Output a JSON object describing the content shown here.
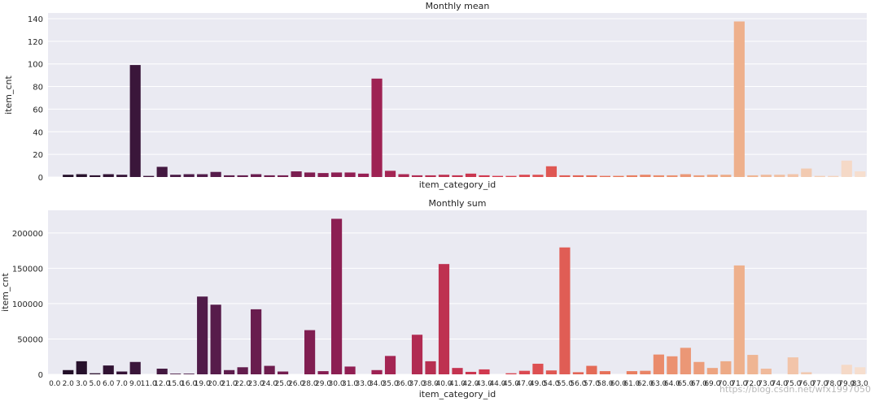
{
  "watermark": "https://blog.csdn.net/wfx1997050",
  "chart_data": [
    {
      "type": "bar",
      "title": "Monthly mean",
      "xlabel": "item_category_id",
      "ylabel": "item_cnt",
      "ylim": [
        0,
        145
      ],
      "yticks": [
        0,
        20,
        40,
        60,
        80,
        100,
        120,
        140
      ],
      "show_x_tick_labels": false,
      "categories": [
        "0.0",
        "2.0",
        "3.0",
        "5.0",
        "6.0",
        "7.0",
        "9.0",
        "11.0",
        "12.0",
        "15.0",
        "16.0",
        "19.0",
        "20.0",
        "21.0",
        "22.0",
        "23.0",
        "24.0",
        "25.0",
        "26.0",
        "28.0",
        "29.0",
        "30.0",
        "31.0",
        "33.0",
        "34.0",
        "35.0",
        "36.0",
        "37.0",
        "38.0",
        "40.0",
        "41.0",
        "42.0",
        "43.0",
        "44.0",
        "45.0",
        "47.0",
        "49.0",
        "54.0",
        "55.0",
        "56.0",
        "57.0",
        "58.0",
        "60.0",
        "61.0",
        "62.0",
        "63.0",
        "64.0",
        "65.0",
        "67.0",
        "69.0",
        "70.0",
        "71.0",
        "72.0",
        "73.0",
        "74.0",
        "75.0",
        "76.0",
        "77.0",
        "78.0",
        "79.0",
        "83.0"
      ],
      "values": [
        0,
        2,
        2.5,
        1.5,
        2.5,
        2,
        99,
        1,
        9,
        2,
        2.5,
        2.5,
        4.5,
        1.5,
        1.5,
        2.5,
        1.5,
        1.5,
        5,
        4,
        3.5,
        4,
        4,
        3,
        87,
        5.5,
        2.5,
        1.5,
        1.5,
        2,
        1.5,
        3,
        1.5,
        1,
        1,
        2,
        2,
        9.5,
        1.5,
        1.5,
        1.5,
        1,
        1,
        1.5,
        2,
        1.5,
        1.5,
        2.5,
        1.5,
        2,
        2,
        137.5,
        1.5,
        2,
        2,
        2.5,
        7.5,
        1,
        1,
        14.5,
        5
      ]
    },
    {
      "type": "bar",
      "title": "Monthly sum",
      "xlabel": "item_category_id",
      "ylabel": "item_cnt",
      "ylim": [
        0,
        232000
      ],
      "yticks": [
        0,
        50000,
        100000,
        150000,
        200000
      ],
      "show_x_tick_labels": true,
      "categories": [
        "0.0",
        "2.0",
        "3.0",
        "5.0",
        "6.0",
        "7.0",
        "9.0",
        "11.0",
        "12.0",
        "15.0",
        "16.0",
        "19.0",
        "20.0",
        "21.0",
        "22.0",
        "23.0",
        "24.0",
        "25.0",
        "26.0",
        "28.0",
        "29.0",
        "30.0",
        "31.0",
        "33.0",
        "34.0",
        "35.0",
        "36.0",
        "37.0",
        "38.0",
        "40.0",
        "41.0",
        "42.0",
        "43.0",
        "44.0",
        "45.0",
        "47.0",
        "49.0",
        "54.0",
        "55.0",
        "56.0",
        "57.0",
        "58.0",
        "60.0",
        "61.0",
        "62.0",
        "63.0",
        "64.0",
        "65.0",
        "67.0",
        "69.0",
        "70.0",
        "71.0",
        "72.0",
        "73.0",
        "74.0",
        "75.0",
        "76.0",
        "77.0",
        "78.0",
        "79.0",
        "83.0"
      ],
      "values": [
        0,
        6000,
        18500,
        1500,
        12500,
        4000,
        17500,
        0,
        8000,
        1000,
        1000,
        110000,
        98500,
        6000,
        10000,
        92000,
        12000,
        4000,
        0,
        62500,
        4500,
        220000,
        11000,
        0,
        6000,
        26000,
        0,
        56000,
        18500,
        156000,
        9000,
        3500,
        7000,
        0,
        1500,
        5000,
        15000,
        5500,
        179500,
        3000,
        12000,
        4500,
        0,
        4500,
        5000,
        28000,
        25500,
        37500,
        17500,
        9000,
        18500,
        154000,
        27500,
        8000,
        0,
        24000,
        3000,
        0,
        0,
        13500,
        10000
      ]
    }
  ]
}
